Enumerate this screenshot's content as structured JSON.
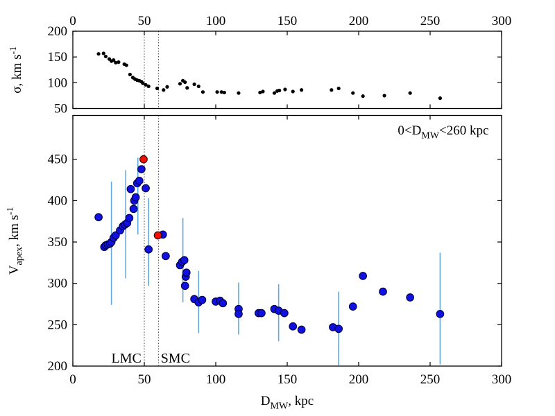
{
  "colors": {
    "background": "#ffffff",
    "frame": "#000000",
    "sigma_point": "#000000",
    "blue_point_fill": "#1010e0",
    "blue_point_edge": "#000040",
    "red_point_fill": "#ee1100",
    "red_point_edge": "#300000",
    "error_bar": "#62a8de",
    "reference_line": "#444444"
  },
  "chart_data": {
    "type": "scatter",
    "xlabel": "D_MW, kpc",
    "xlabel_parts": [
      {
        "t": "D"
      },
      {
        "t": "MW",
        "pos": "sub"
      },
      {
        "t": ", kpc"
      }
    ],
    "xlim": [
      0,
      300
    ],
    "x_ticks": [
      0,
      50,
      100,
      150,
      200,
      250,
      300
    ],
    "reference_lines": [
      {
        "x": 50,
        "label": "LMC"
      },
      {
        "x": 60,
        "label": "SMC"
      }
    ],
    "panels": [
      {
        "id": "sigma-panel",
        "ylabel": "σ, km s^-1",
        "ylabel_parts": [
          {
            "t": "σ, km s"
          },
          {
            "t": "-1",
            "pos": "sup"
          }
        ],
        "ylim": [
          50,
          200
        ],
        "y_ticks": [
          50,
          100,
          150,
          200
        ],
        "x_tick_labels_on": "top",
        "series": [
          {
            "name": "sigma-points",
            "marker": "dot",
            "color_key": "sigma_point",
            "points": [
              [
                18,
                156
              ],
              [
                21.5,
                157
              ],
              [
                23,
                151
              ],
              [
                25.5,
                146
              ],
              [
                27,
                142
              ],
              [
                28.5,
                144
              ],
              [
                30,
                139
              ],
              [
                32,
                140
              ],
              [
                36,
                136
              ],
              [
                37.5,
                134
              ],
              [
                40,
                116
              ],
              [
                42,
                110
              ],
              [
                43.5,
                107
              ],
              [
                45,
                105
              ],
              [
                46.5,
                104
              ],
              [
                48,
                102
              ],
              [
                49,
                99
              ],
              [
                51,
                96
              ],
              [
                53,
                93
              ],
              [
                59,
                89
              ],
              [
                63.5,
                86
              ],
              [
                66,
                92
              ],
              [
                75,
                98
              ],
              [
                77,
                104
              ],
              [
                78.5,
                101
              ],
              [
                80,
                90
              ],
              [
                85,
                97
              ],
              [
                88,
                93
              ],
              [
                91,
                82
              ],
              [
                101,
                82
              ],
              [
                104,
                82
              ],
              [
                106,
                81
              ],
              [
                116,
                80
              ],
              [
                131,
                81
              ],
              [
                133,
                83
              ],
              [
                141,
                80
              ],
              [
                143,
                84
              ],
              [
                144.5,
                85
              ],
              [
                148.5,
                87
              ],
              [
                154,
                83
              ],
              [
                160,
                86
              ],
              [
                181,
                86
              ],
              [
                186,
                89
              ],
              [
                196,
                80
              ],
              [
                203,
                74
              ],
              [
                218,
                75
              ],
              [
                236,
                80
              ],
              [
                257,
                70
              ]
            ]
          }
        ]
      },
      {
        "id": "vapex-panel",
        "ylabel": "V_apex, km s^-1",
        "ylabel_parts": [
          {
            "t": "V"
          },
          {
            "t": "apex",
            "pos": "sub"
          },
          {
            "t": ", km s"
          },
          {
            "t": "-1",
            "pos": "sup"
          }
        ],
        "ylim": [
          200,
          503
        ],
        "y_ticks": [
          200,
          250,
          300,
          350,
          400,
          450
        ],
        "x_tick_labels_on": "bottom",
        "annotation": {
          "text": "0<D_MW<260 kpc",
          "parts": [
            {
              "t": "0<D"
            },
            {
              "t": "MW",
              "pos": "sub"
            },
            {
              "t": "<260 kpc"
            }
          ],
          "x": 291,
          "y": 480,
          "anchor": "end"
        },
        "error_bars": [
          {
            "x": 27,
            "lo": 274,
            "hi": 423
          },
          {
            "x": 37,
            "lo": 306,
            "hi": 437
          },
          {
            "x": 45.5,
            "lo": 359,
            "hi": 452
          },
          {
            "x": 53,
            "lo": 297,
            "hi": 403
          },
          {
            "x": 77,
            "lo": 277,
            "hi": 379
          },
          {
            "x": 88,
            "lo": 240,
            "hi": 315
          },
          {
            "x": 116,
            "lo": 238,
            "hi": 301
          },
          {
            "x": 144,
            "lo": 230,
            "hi": 299
          },
          {
            "x": 186,
            "lo": 201,
            "hi": 290
          },
          {
            "x": 257,
            "lo": 202,
            "hi": 337
          }
        ],
        "series": [
          {
            "name": "vapex-blue-points",
            "marker": "circle",
            "color_key": "blue_point_fill",
            "edge_key": "blue_point_edge",
            "points": [
              [
                18,
                380
              ],
              [
                22,
                344
              ],
              [
                23,
                346
              ],
              [
                24.5,
                347
              ],
              [
                26,
                348
              ],
              [
                27,
                350
              ],
              [
                28.5,
                355
              ],
              [
                30,
                358
              ],
              [
                33,
                364
              ],
              [
                35,
                369
              ],
              [
                36.5,
                371
              ],
              [
                38,
                373
              ],
              [
                39.5,
                379
              ],
              [
                40.5,
                414
              ],
              [
                42.5,
                390
              ],
              [
                43,
                400
              ],
              [
                44,
                404
              ],
              [
                45,
                421
              ],
              [
                46.5,
                424
              ],
              [
                48,
                438
              ],
              [
                51,
                415
              ],
              [
                53,
                341
              ],
              [
                63,
                359
              ],
              [
                65,
                333
              ],
              [
                75,
                322
              ],
              [
                76.5,
                326
              ],
              [
                78,
                328
              ],
              [
                78.5,
                297
              ],
              [
                79,
                308
              ],
              [
                79.5,
                313
              ],
              [
                85,
                281
              ],
              [
                88,
                277
              ],
              [
                90.5,
                280
              ],
              [
                100,
                278
              ],
              [
                103,
                279
              ],
              [
                105,
                276
              ],
              [
                116,
                269
              ],
              [
                116,
                263
              ],
              [
                130,
                264
              ],
              [
                132,
                264
              ],
              [
                141,
                269
              ],
              [
                144,
                267
              ],
              [
                148,
                264
              ],
              [
                154,
                248
              ],
              [
                160,
                244
              ],
              [
                182,
                247
              ],
              [
                186,
                245
              ],
              [
                196,
                272
              ],
              [
                203,
                309
              ],
              [
                217,
                290
              ],
              [
                236,
                283
              ],
              [
                257,
                263
              ]
            ]
          },
          {
            "name": "vapex-red-points",
            "marker": "circle",
            "color_key": "red_point_fill",
            "edge_key": "red_point_edge",
            "points": [
              [
                49.5,
                450
              ],
              [
                59.5,
                358
              ]
            ]
          }
        ],
        "region_labels": [
          {
            "text": "LMC",
            "x": 48,
            "anchor": "end"
          },
          {
            "text": "SMC",
            "x": 61.5,
            "anchor": "start"
          }
        ]
      }
    ]
  }
}
